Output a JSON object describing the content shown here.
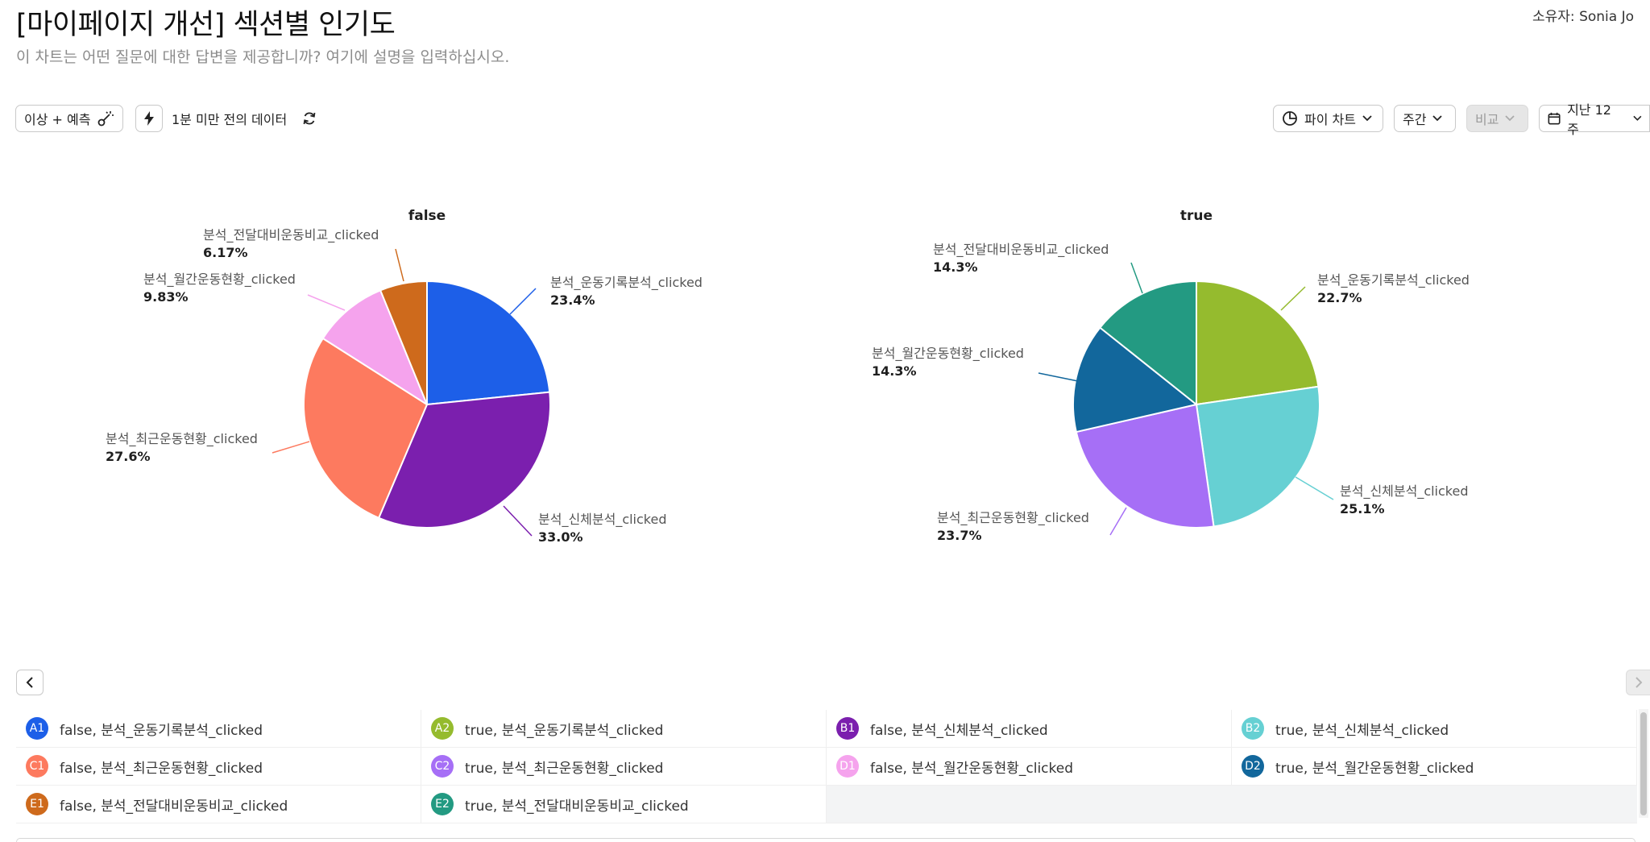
{
  "header": {
    "title": "[마이페이지 개선] 섹션별 인기도",
    "subtitle": "이 차트는 어떤 질문에 대한 답변을 제공합니까? 여기에 설명을 입력하십시오.",
    "owner_label": "소유자: Sonia Jo"
  },
  "toolbar": {
    "anomaly_label": "이상 + 예측",
    "data_freshness": "1분 미만 전의 데이터",
    "chart_type_label": "파이 차트",
    "interval_label": "주간",
    "compare_label": "비교",
    "range_label": "지난 12주"
  },
  "colors": {
    "A1": "#1d5fe8",
    "A2": "#95bb2e",
    "B1": "#7b1fae",
    "B2": "#66d0d3",
    "C1": "#fd7a5f",
    "C2": "#a66ff6",
    "D1": "#f5a3ed",
    "D2": "#12679c",
    "E1": "#ce6a1c",
    "E2": "#239a82"
  },
  "chart_data": {
    "type": "pie",
    "charts": [
      {
        "title": "false",
        "slices": [
          {
            "key": "A1",
            "label": "분석_운동기록분석_clicked",
            "value": 23.4,
            "display": "23.4%"
          },
          {
            "key": "B1",
            "label": "분석_신체분석_clicked",
            "value": 33.0,
            "display": "33.0%"
          },
          {
            "key": "C1",
            "label": "분석_최근운동현황_clicked",
            "value": 27.6,
            "display": "27.6%"
          },
          {
            "key": "D1",
            "label": "분석_월간운동현황_clicked",
            "value": 9.83,
            "display": "9.83%"
          },
          {
            "key": "E1",
            "label": "분석_전달대비운동비교_clicked",
            "value": 6.17,
            "display": "6.17%"
          }
        ]
      },
      {
        "title": "true",
        "slices": [
          {
            "key": "A2",
            "label": "분석_운동기록분석_clicked",
            "value": 22.7,
            "display": "22.7%"
          },
          {
            "key": "B2",
            "label": "분석_신체분석_clicked",
            "value": 25.1,
            "display": "25.1%"
          },
          {
            "key": "C2",
            "label": "분석_최근운동현황_clicked",
            "value": 23.7,
            "display": "23.7%"
          },
          {
            "key": "D2",
            "label": "분석_월간운동현황_clicked",
            "value": 14.3,
            "display": "14.3%"
          },
          {
            "key": "E2",
            "label": "분석_전달대비운동비교_clicked",
            "value": 14.3,
            "display": "14.3%"
          }
        ]
      }
    ]
  },
  "legend": [
    [
      {
        "key": "A1",
        "text": "false, 분석_운동기록분석_clicked"
      },
      {
        "key": "A2",
        "text": "true, 분석_운동기록분석_clicked"
      },
      {
        "key": "B1",
        "text": "false, 분석_신체분석_clicked"
      },
      {
        "key": "B2",
        "text": "true, 분석_신체분석_clicked"
      }
    ],
    [
      {
        "key": "C1",
        "text": "false, 분석_최근운동현황_clicked"
      },
      {
        "key": "C2",
        "text": "true, 분석_최근운동현황_clicked"
      },
      {
        "key": "D1",
        "text": "false, 분석_월간운동현황_clicked"
      },
      {
        "key": "D2",
        "text": "true, 분석_월간운동현황_clicked"
      }
    ],
    [
      {
        "key": "E1",
        "text": "false, 분석_전달대비운동비교_clicked"
      },
      {
        "key": "E2",
        "text": "true, 분석_전달대비운동비교_clicked"
      }
    ]
  ]
}
